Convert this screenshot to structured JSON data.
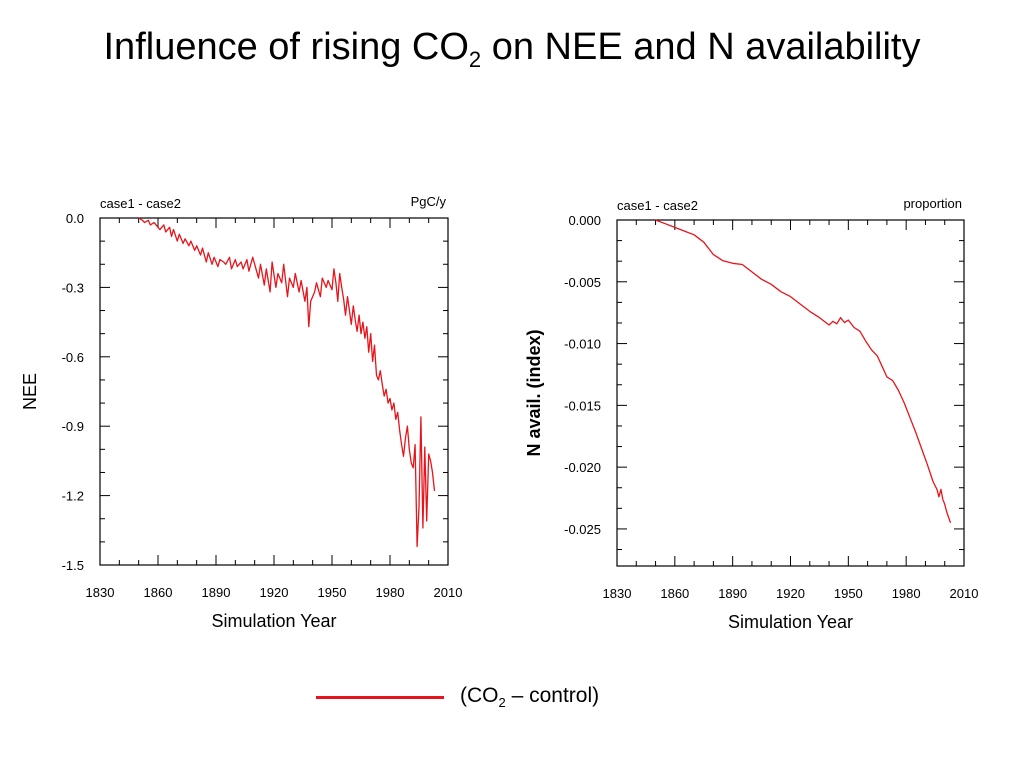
{
  "title": {
    "pre": "Influence of rising CO",
    "sub": "2",
    "post": " on NEE and N availability"
  },
  "legend": {
    "pre": "(CO",
    "sub": "2",
    "post": " – control)",
    "color": "#e8141b"
  },
  "chart_data": [
    {
      "type": "line",
      "left_label": "case1 - case2",
      "right_label": "PgC/y",
      "xlabel": "Simulation Year",
      "ylabel": "NEE",
      "xlim": [
        1830,
        2010
      ],
      "ylim": [
        -1.5,
        0.0
      ],
      "xticks": [
        1830,
        1860,
        1890,
        1920,
        1950,
        1980,
        2010
      ],
      "yticks": [
        0.0,
        -0.3,
        -0.6,
        -0.9,
        -1.2,
        -1.5
      ],
      "ytick_labels": [
        "0.0",
        "-0.3",
        "-0.6",
        "-0.9",
        "-1.2",
        "-1.5"
      ],
      "grid": false,
      "series": [
        {
          "color": "#e8141b",
          "x": [
            1850,
            1852,
            1853,
            1855,
            1856,
            1858,
            1860,
            1861,
            1863,
            1864,
            1866,
            1867,
            1868,
            1870,
            1871,
            1873,
            1874,
            1876,
            1877,
            1879,
            1880,
            1882,
            1883,
            1885,
            1886,
            1888,
            1889,
            1891,
            1892,
            1894,
            1895,
            1897,
            1898,
            1900,
            1901,
            1903,
            1904,
            1906,
            1907,
            1909,
            1910,
            1912,
            1913,
            1915,
            1916,
            1918,
            1919,
            1921,
            1922,
            1924,
            1925,
            1927,
            1928,
            1930,
            1931,
            1933,
            1934,
            1936,
            1937,
            1938,
            1939,
            1941,
            1942,
            1944,
            1945,
            1947,
            1948,
            1950,
            1951,
            1952,
            1953,
            1954,
            1955,
            1956,
            1957,
            1958,
            1959,
            1960,
            1961,
            1962,
            1963,
            1964,
            1965,
            1966,
            1967,
            1968,
            1969,
            1970,
            1971,
            1972,
            1973,
            1974,
            1975,
            1976,
            1977,
            1978,
            1979,
            1980,
            1981,
            1982,
            1983,
            1984,
            1985,
            1986,
            1987,
            1988,
            1989,
            1990,
            1991,
            1992,
            1993,
            1994,
            1995,
            1996,
            1997,
            1998,
            1999,
            2000,
            2001,
            2002,
            2003
          ],
          "y": [
            0.0,
            -0.01,
            -0.02,
            -0.01,
            -0.03,
            -0.02,
            -0.04,
            -0.05,
            -0.03,
            -0.06,
            -0.04,
            -0.08,
            -0.05,
            -0.1,
            -0.07,
            -0.11,
            -0.09,
            -0.12,
            -0.1,
            -0.14,
            -0.12,
            -0.16,
            -0.13,
            -0.19,
            -0.15,
            -0.2,
            -0.17,
            -0.21,
            -0.18,
            -0.19,
            -0.2,
            -0.17,
            -0.22,
            -0.18,
            -0.21,
            -0.19,
            -0.22,
            -0.18,
            -0.23,
            -0.17,
            -0.2,
            -0.26,
            -0.2,
            -0.29,
            -0.22,
            -0.32,
            -0.19,
            -0.3,
            -0.24,
            -0.28,
            -0.2,
            -0.34,
            -0.26,
            -0.3,
            -0.24,
            -0.32,
            -0.27,
            -0.36,
            -0.3,
            -0.47,
            -0.36,
            -0.32,
            -0.28,
            -0.34,
            -0.26,
            -0.3,
            -0.27,
            -0.31,
            -0.22,
            -0.28,
            -0.36,
            -0.24,
            -0.3,
            -0.35,
            -0.42,
            -0.34,
            -0.4,
            -0.46,
            -0.38,
            -0.44,
            -0.49,
            -0.42,
            -0.5,
            -0.45,
            -0.52,
            -0.47,
            -0.58,
            -0.5,
            -0.62,
            -0.55,
            -0.68,
            -0.7,
            -0.66,
            -0.72,
            -0.77,
            -0.74,
            -0.8,
            -0.78,
            -0.83,
            -0.8,
            -0.87,
            -0.84,
            -0.92,
            -0.98,
            -1.03,
            -0.95,
            -0.9,
            -1.0,
            -1.06,
            -1.08,
            -0.98,
            -1.42,
            -1.25,
            -0.86,
            -1.34,
            -0.99,
            -1.31,
            -1.02,
            -1.05,
            -1.1,
            -1.18
          ]
        }
      ]
    },
    {
      "type": "line",
      "left_label": "case1 - case2",
      "right_label": "proportion",
      "xlabel": "Simulation Year",
      "ylabel": "N avail. (index)",
      "xlim": [
        1830,
        2010
      ],
      "ylim": [
        -0.028,
        0.0
      ],
      "xticks": [
        1830,
        1860,
        1890,
        1920,
        1950,
        1980,
        2010
      ],
      "yticks": [
        0.0,
        -0.005,
        -0.01,
        -0.015,
        -0.02,
        -0.025
      ],
      "ytick_labels": [
        "0.000",
        "-0.005",
        "-0.010",
        "-0.015",
        "-0.020",
        "-0.025"
      ],
      "grid": false,
      "series": [
        {
          "color": "#e8141b",
          "x": [
            1850,
            1855,
            1860,
            1865,
            1870,
            1875,
            1880,
            1885,
            1890,
            1895,
            1900,
            1905,
            1910,
            1915,
            1920,
            1925,
            1930,
            1935,
            1940,
            1942,
            1944,
            1946,
            1948,
            1950,
            1953,
            1956,
            1959,
            1962,
            1965,
            1968,
            1970,
            1973,
            1976,
            1979,
            1982,
            1985,
            1988,
            1991,
            1994,
            1996,
            1997,
            1998,
            1999,
            2000,
            2001,
            2003
          ],
          "y": [
            0.0,
            -0.0003,
            -0.0006,
            -0.0009,
            -0.0012,
            -0.0018,
            -0.0028,
            -0.0033,
            -0.0035,
            -0.0036,
            -0.0042,
            -0.0048,
            -0.0052,
            -0.0058,
            -0.0062,
            -0.0068,
            -0.0074,
            -0.0079,
            -0.0085,
            -0.0082,
            -0.0084,
            -0.0079,
            -0.0083,
            -0.0081,
            -0.0087,
            -0.009,
            -0.0098,
            -0.0105,
            -0.011,
            -0.012,
            -0.0127,
            -0.013,
            -0.0138,
            -0.0148,
            -0.016,
            -0.0172,
            -0.0185,
            -0.0198,
            -0.0212,
            -0.0218,
            -0.0224,
            -0.0218,
            -0.0226,
            -0.023,
            -0.0236,
            -0.0245
          ]
        }
      ]
    }
  ]
}
